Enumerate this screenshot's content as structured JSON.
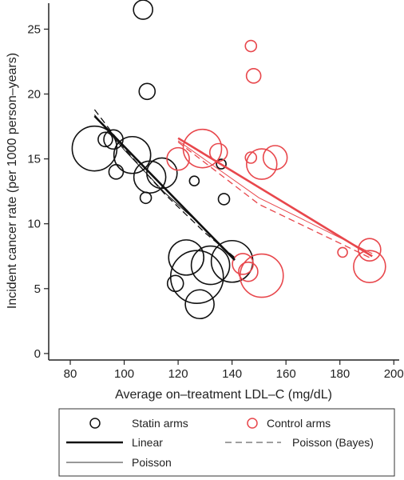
{
  "chart_data": {
    "type": "scatter",
    "title": "",
    "xlabel": "Average on–treatment LDL–C (mg/dL)",
    "ylabel": "Incident cancer rate (per 1000 person–years)",
    "xlim": [
      72,
      202
    ],
    "ylim": [
      -0.5,
      27
    ],
    "xticks": [
      80,
      100,
      120,
      140,
      160,
      180,
      200
    ],
    "yticks": [
      0,
      5,
      10,
      15,
      20,
      25
    ],
    "grid": false,
    "legend_position": "bottom",
    "colors": {
      "statin": "#111111",
      "control": "#e8474c"
    },
    "series": [
      {
        "name": "Statin arms",
        "kind": "points",
        "color": "#111111",
        "points": [
          {
            "x": 107,
            "y": 26.5,
            "s": 12
          },
          {
            "x": 108.5,
            "y": 20.2,
            "s": 10
          },
          {
            "x": 89,
            "y": 15.8,
            "s": 28
          },
          {
            "x": 93,
            "y": 16.5,
            "s": 9
          },
          {
            "x": 96,
            "y": 16.5,
            "s": 12
          },
          {
            "x": 103,
            "y": 15.3,
            "s": 23
          },
          {
            "x": 97,
            "y": 14.0,
            "s": 9
          },
          {
            "x": 108,
            "y": 12.0,
            "s": 7
          },
          {
            "x": 109.5,
            "y": 13.6,
            "s": 20
          },
          {
            "x": 114,
            "y": 13.9,
            "s": 19
          },
          {
            "x": 126,
            "y": 13.3,
            "s": 6
          },
          {
            "x": 136,
            "y": 14.6,
            "s": 6
          },
          {
            "x": 137,
            "y": 11.9,
            "s": 7
          },
          {
            "x": 123,
            "y": 7.4,
            "s": 22
          },
          {
            "x": 119,
            "y": 5.4,
            "s": 10
          },
          {
            "x": 127,
            "y": 5.9,
            "s": 33
          },
          {
            "x": 132,
            "y": 6.8,
            "s": 24
          },
          {
            "x": 140,
            "y": 7.1,
            "s": 26
          },
          {
            "x": 128,
            "y": 3.8,
            "s": 18
          }
        ]
      },
      {
        "name": "Control arms",
        "kind": "points",
        "color": "#e8474c",
        "points": [
          {
            "x": 147,
            "y": 23.7,
            "s": 7
          },
          {
            "x": 148,
            "y": 21.4,
            "s": 9
          },
          {
            "x": 120,
            "y": 15.0,
            "s": 14
          },
          {
            "x": 129,
            "y": 15.8,
            "s": 24
          },
          {
            "x": 135,
            "y": 15.5,
            "s": 11
          },
          {
            "x": 147,
            "y": 15.1,
            "s": 7
          },
          {
            "x": 151,
            "y": 14.6,
            "s": 19
          },
          {
            "x": 156,
            "y": 15.1,
            "s": 15
          },
          {
            "x": 144,
            "y": 6.9,
            "s": 13
          },
          {
            "x": 146,
            "y": 6.3,
            "s": 12
          },
          {
            "x": 151,
            "y": 6.0,
            "s": 27
          },
          {
            "x": 181,
            "y": 7.8,
            "s": 6
          },
          {
            "x": 191,
            "y": 8.0,
            "s": 14
          },
          {
            "x": 191,
            "y": 6.7,
            "s": 20
          }
        ]
      },
      {
        "name": "Linear",
        "kind": "line",
        "style": "solid-thick",
        "lines": [
          {
            "color": "#111111",
            "x": [
              89,
              141
            ],
            "y": [
              18.3,
              7.2
            ]
          },
          {
            "color": "#e8474c",
            "x": [
              120,
              192
            ],
            "y": [
              16.6,
              7.5
            ]
          }
        ]
      },
      {
        "name": "Poisson (Bayes)",
        "kind": "line",
        "style": "dashed",
        "lines": [
          {
            "color": "#111111",
            "x": [
              89,
              100,
              115,
              130,
              141
            ],
            "y": [
              18.8,
              15.8,
              12.3,
              9.3,
              7.4
            ]
          },
          {
            "color": "#e8474c",
            "x": [
              120,
              150,
              192
            ],
            "y": [
              16.3,
              11.5,
              7.3
            ]
          }
        ]
      },
      {
        "name": "Poisson",
        "kind": "line",
        "style": "solid-thin",
        "lines": [
          {
            "color": "#111111",
            "x": [
              89,
              100,
              115,
              130,
              141
            ],
            "y": [
              18.4,
              15.7,
              12.4,
              9.6,
              7.3
            ]
          },
          {
            "color": "#e8474c",
            "x": [
              120,
              150,
              192
            ],
            "y": [
              16.4,
              12.0,
              7.7
            ]
          }
        ]
      }
    ]
  },
  "legend": {
    "statin": "Statin arms",
    "control": "Control arms",
    "linear": "Linear",
    "bayes": "Poisson (Bayes)",
    "poisson": "Poisson"
  }
}
